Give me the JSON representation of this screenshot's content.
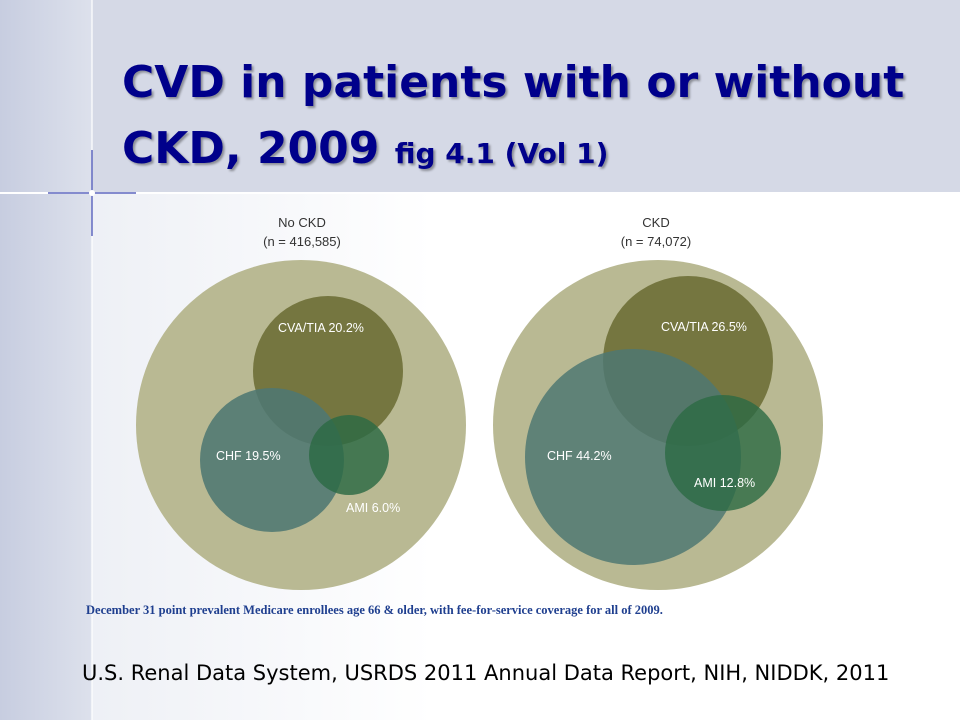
{
  "title": {
    "main": "CVD in patients with or without CKD, 2009",
    "suffix": "fig 4.1 (Vol 1)"
  },
  "colors": {
    "outer": "#b9b993",
    "cva": "#6f7038",
    "chf": "#4f7872",
    "ami": "#2c6a44",
    "title": "#00008b",
    "footnote": "#1f3f8f"
  },
  "panels": [
    {
      "name": "No CKD",
      "n_label": "(n = 416,585)",
      "sets": [
        {
          "key": "cva",
          "label": "CVA/TIA 20.2%",
          "percent": 20.2
        },
        {
          "key": "chf",
          "label": "CHF 19.5%",
          "percent": 19.5
        },
        {
          "key": "ami",
          "label": "AMI 6.0%",
          "percent": 6.0
        }
      ]
    },
    {
      "name": "CKD",
      "n_label": "(n = 74,072)",
      "sets": [
        {
          "key": "cva",
          "label": "CVA/TIA 26.5%",
          "percent": 26.5
        },
        {
          "key": "chf",
          "label": "CHF 44.2%",
          "percent": 44.2
        },
        {
          "key": "ami",
          "label": "AMI 12.8%",
          "percent": 12.8
        }
      ]
    }
  ],
  "footnote": "December 31 point prevalent Medicare enrollees age 66 & older, with fee-for-service coverage for all of 2009.",
  "source": "U.S. Renal Data System, USRDS 2011 Annual Data Report, NIH, NIDDK, 2011"
}
